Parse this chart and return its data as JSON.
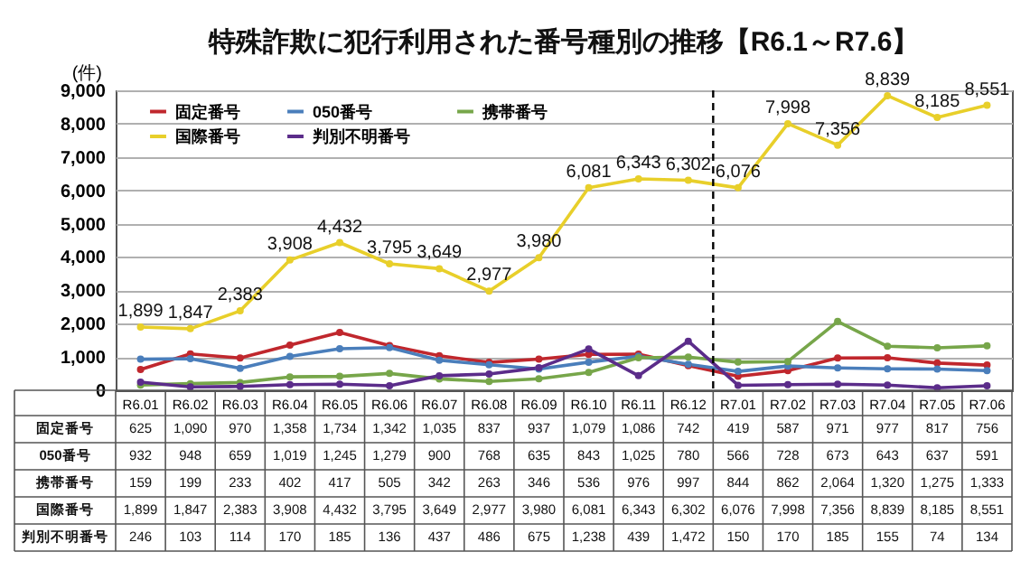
{
  "chart_data": {
    "type": "line",
    "title": "特殊詐欺に犯行利用された番号種別の推移【R6.1～R7.6】",
    "ylabel": "(件)",
    "categories": [
      "R6.01",
      "R6.02",
      "R6.03",
      "R6.04",
      "R6.05",
      "R6.06",
      "R6.07",
      "R6.08",
      "R6.09",
      "R6.10",
      "R6.11",
      "R6.12",
      "R7.01",
      "R7.02",
      "R7.03",
      "R7.04",
      "R7.05",
      "R7.06"
    ],
    "series": [
      {
        "name": "固定番号",
        "color": "#c0272d",
        "values": [
          625,
          1090,
          970,
          1358,
          1734,
          1342,
          1035,
          837,
          937,
          1079,
          1086,
          742,
          419,
          587,
          971,
          977,
          817,
          756
        ],
        "value_labels": [
          "625",
          "1,090",
          "970",
          "1,358",
          "1,734",
          "1,342",
          "1,035",
          "837",
          "937",
          "1,079",
          "1,086",
          "742",
          "419",
          "587",
          "971",
          "977",
          "817",
          "756"
        ]
      },
      {
        "name": "050番号",
        "color": "#4a7ebb",
        "values": [
          932,
          948,
          659,
          1019,
          1245,
          1279,
          900,
          768,
          635,
          843,
          1025,
          780,
          566,
          728,
          673,
          643,
          637,
          591
        ],
        "value_labels": [
          "932",
          "948",
          "659",
          "1,019",
          "1,245",
          "1,279",
          "900",
          "768",
          "635",
          "843",
          "1,025",
          "780",
          "566",
          "728",
          "673",
          "643",
          "637",
          "591"
        ]
      },
      {
        "name": "携帯番号",
        "color": "#77a64a",
        "values": [
          159,
          199,
          233,
          402,
          417,
          505,
          342,
          263,
          346,
          536,
          976,
          997,
          844,
          862,
          2064,
          1320,
          1275,
          1333
        ],
        "value_labels": [
          "159",
          "199",
          "233",
          "402",
          "417",
          "505",
          "342",
          "263",
          "346",
          "536",
          "976",
          "997",
          "844",
          "862",
          "2,064",
          "1,320",
          "1,275",
          "1,333"
        ]
      },
      {
        "name": "国際番号",
        "color": "#e8cf2a",
        "values": [
          1899,
          1847,
          2383,
          3908,
          4432,
          3795,
          3649,
          2977,
          3980,
          6081,
          6343,
          6302,
          6076,
          7998,
          7356,
          8839,
          8185,
          8551
        ],
        "value_labels": [
          "1,899",
          "1,847",
          "2,383",
          "3,908",
          "4,432",
          "3,795",
          "3,649",
          "2,977",
          "3,980",
          "6,081",
          "6,343",
          "6,302",
          "6,076",
          "7,998",
          "7,356",
          "8,839",
          "8,185",
          "8,551"
        ]
      },
      {
        "name": "判別不明番号",
        "color": "#5b2c8a",
        "values": [
          246,
          103,
          114,
          170,
          185,
          136,
          437,
          486,
          675,
          1238,
          439,
          1472,
          150,
          170,
          185,
          155,
          74,
          134
        ],
        "value_labels": [
          "246",
          "103",
          "114",
          "170",
          "185",
          "136",
          "437",
          "486",
          "675",
          "1,238",
          "439",
          "1,472",
          "150",
          "170",
          "185",
          "155",
          "74",
          "134"
        ]
      }
    ],
    "annotations": [
      {
        "text": "1,899",
        "x": "R6.01",
        "y": 1899
      },
      {
        "text": "1,847",
        "x": "R6.02",
        "y": 1847
      },
      {
        "text": "2,383",
        "x": "R6.03",
        "y": 2383
      },
      {
        "text": "3,908",
        "x": "R6.04",
        "y": 3908
      },
      {
        "text": "4,432",
        "x": "R6.05",
        "y": 4432
      },
      {
        "text": "3,795",
        "x": "R6.06",
        "y": 3795
      },
      {
        "text": "3,649",
        "x": "R6.07",
        "y": 3649
      },
      {
        "text": "2,977",
        "x": "R6.08",
        "y": 2977
      },
      {
        "text": "3,980",
        "x": "R6.09",
        "y": 3980
      },
      {
        "text": "6,081",
        "x": "R6.10",
        "y": 6081
      },
      {
        "text": "6,343",
        "x": "R6.11",
        "y": 6343
      },
      {
        "text": "6,302",
        "x": "R6.12",
        "y": 6302
      },
      {
        "text": "6,076",
        "x": "R7.01",
        "y": 6076
      },
      {
        "text": "7,998",
        "x": "R7.02",
        "y": 7998
      },
      {
        "text": "7,356",
        "x": "R7.03",
        "y": 7356
      },
      {
        "text": "8,839",
        "x": "R7.04",
        "y": 8839
      },
      {
        "text": "8,185",
        "x": "R7.05",
        "y": 8185
      },
      {
        "text": "8,551",
        "x": "R7.06",
        "y": 8551
      }
    ],
    "ylim": [
      0,
      9000
    ],
    "yticks": [
      0,
      {
        "value": 1000,
        "label": "1,000"
      },
      {
        "value": 2000,
        "label": "2,000"
      },
      {
        "value": 3000,
        "label": "3,000"
      },
      {
        "value": 4000,
        "label": "4,000"
      },
      {
        "value": 5000,
        "label": "5,000"
      },
      {
        "value": 6000,
        "label": "6,000"
      },
      {
        "value": 7000,
        "label": "7,000"
      },
      {
        "value": 8000,
        "label": "8,000"
      },
      {
        "value": 9000,
        "label": "9,000"
      }
    ],
    "ref_lines": [
      {
        "axis": "x",
        "value": "R7.01",
        "line_style": "dashed"
      }
    ],
    "grid": "y",
    "legend": "top left",
    "marker": "circle"
  }
}
